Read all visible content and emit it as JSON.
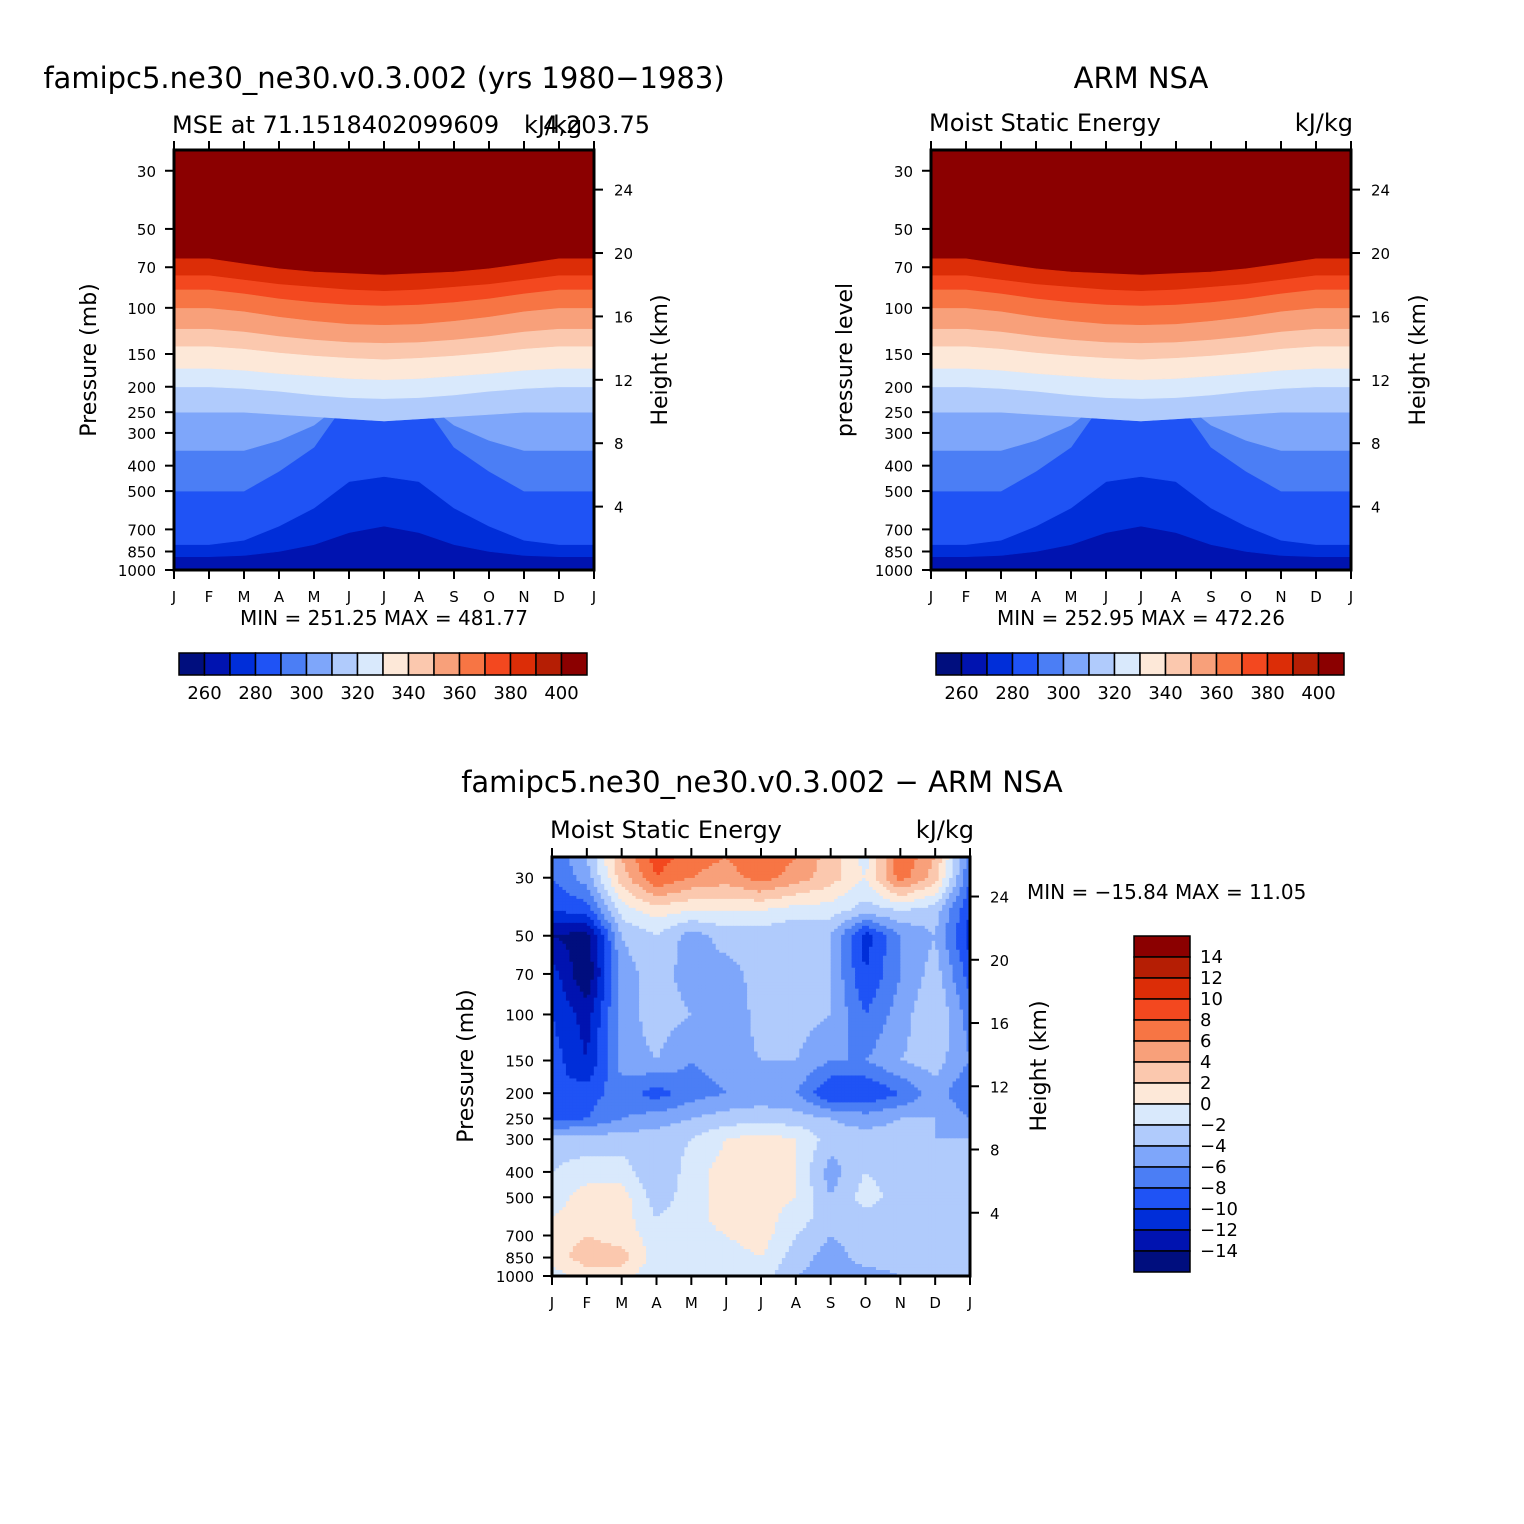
{
  "chart_data": [
    {
      "type": "heatmap",
      "id": "model",
      "title": "famipc5.ne30_ne30.v0.3.002 (yrs 1980−1983)",
      "subtitle_left": "MSE at 71.1518402099609",
      "subtitle_right": "kJ/kg",
      "subtitle_extra": "4,203.75",
      "ylabel": "Pressure (mb)",
      "ylabel_right": "Height (km)",
      "x_ticks": [
        "J",
        "F",
        "M",
        "A",
        "M",
        "J",
        "J",
        "A",
        "S",
        "O",
        "N",
        "D",
        "J"
      ],
      "p_ticks": [
        30,
        50,
        70,
        100,
        150,
        200,
        250,
        300,
        400,
        500,
        700,
        850,
        1000
      ],
      "height_ticks": [
        24,
        20,
        16,
        12,
        8,
        4
      ],
      "minmax": "MIN = 251.25 MAX = 481.77",
      "levels": [
        260,
        270,
        280,
        290,
        300,
        310,
        320,
        330,
        340,
        350,
        360,
        370,
        380,
        390,
        400
      ],
      "colorbar_labels": [
        "260",
        "280",
        "300",
        "320",
        "340",
        "360",
        "380",
        "400"
      ],
      "contour_pressures": [
        1000,
        900,
        800,
        500,
        350,
        250,
        200,
        170,
        140,
        120,
        100,
        85,
        75,
        65
      ],
      "contour_offsets": [
        [
          0,
          0,
          0,
          0,
          0,
          0,
          0,
          0,
          0,
          0,
          0,
          0,
          0
        ],
        [
          -10,
          -10,
          -20,
          -50,
          -100,
          -180,
          -220,
          -180,
          -100,
          -50,
          -20,
          -10,
          -10
        ],
        [
          0,
          0,
          -30,
          -120,
          -220,
          -340,
          -360,
          -340,
          -220,
          -120,
          -30,
          0,
          0
        ],
        [
          0,
          0,
          0,
          -80,
          -160,
          -280,
          -320,
          -280,
          -160,
          -80,
          0,
          0,
          0
        ],
        [
          0,
          0,
          0,
          -30,
          -70,
          -130,
          -150,
          -130,
          -70,
          -30,
          0,
          0,
          0
        ],
        [
          0,
          0,
          0,
          5,
          10,
          15,
          20,
          15,
          10,
          5,
          0,
          0,
          0
        ],
        [
          0,
          0,
          3,
          8,
          15,
          20,
          22,
          20,
          15,
          8,
          3,
          0,
          0
        ],
        [
          0,
          0,
          3,
          8,
          12,
          16,
          18,
          16,
          12,
          8,
          3,
          0,
          0
        ],
        [
          0,
          0,
          3,
          8,
          12,
          15,
          17,
          15,
          12,
          8,
          3,
          0,
          0
        ],
        [
          0,
          0,
          3,
          8,
          12,
          15,
          16,
          15,
          12,
          8,
          3,
          0,
          0
        ],
        [
          0,
          0,
          3,
          8,
          12,
          15,
          16,
          15,
          12,
          8,
          3,
          0,
          0
        ],
        [
          0,
          0,
          3,
          7,
          10,
          12,
          13,
          12,
          10,
          7,
          3,
          0,
          0
        ],
        [
          0,
          0,
          3,
          6,
          8,
          10,
          11,
          10,
          8,
          6,
          3,
          0,
          0
        ],
        [
          0,
          0,
          3,
          6,
          8,
          9,
          10,
          9,
          8,
          6,
          3,
          0,
          0
        ]
      ]
    },
    {
      "type": "heatmap",
      "id": "obs",
      "title": "ARM NSA",
      "subtitle_left": "Moist Static Energy",
      "subtitle_right": "kJ/kg",
      "ylabel": "pressure level",
      "ylabel_right": "Height (km)",
      "x_ticks": [
        "J",
        "F",
        "M",
        "A",
        "M",
        "J",
        "J",
        "A",
        "S",
        "O",
        "N",
        "D",
        "J"
      ],
      "p_ticks": [
        30,
        50,
        70,
        100,
        150,
        200,
        250,
        300,
        400,
        500,
        700,
        850,
        1000
      ],
      "height_ticks": [
        24,
        20,
        16,
        12,
        8,
        4
      ],
      "minmax": "MIN = 252.95 MAX = 472.26",
      "levels": [
        260,
        270,
        280,
        290,
        300,
        310,
        320,
        330,
        340,
        350,
        360,
        370,
        380,
        390,
        400
      ],
      "colorbar_labels": [
        "260",
        "280",
        "300",
        "320",
        "340",
        "360",
        "380",
        "400"
      ],
      "contour_pressures": [
        1000,
        900,
        800,
        500,
        350,
        250,
        200,
        170,
        140,
        120,
        100,
        85,
        75,
        65
      ],
      "contour_offsets": [
        [
          0,
          0,
          0,
          0,
          0,
          0,
          0,
          0,
          0,
          0,
          0,
          0,
          0
        ],
        [
          -10,
          -10,
          -20,
          -50,
          -100,
          -180,
          -220,
          -180,
          -100,
          -50,
          -20,
          -10,
          -10
        ],
        [
          0,
          0,
          -30,
          -120,
          -220,
          -340,
          -360,
          -340,
          -220,
          -120,
          -30,
          0,
          0
        ],
        [
          0,
          0,
          0,
          -80,
          -160,
          -280,
          -320,
          -280,
          -160,
          -80,
          0,
          0,
          0
        ],
        [
          0,
          0,
          0,
          -30,
          -70,
          -130,
          -150,
          -130,
          -70,
          -30,
          0,
          0,
          0
        ],
        [
          0,
          0,
          0,
          5,
          10,
          15,
          20,
          15,
          10,
          5,
          0,
          0,
          0
        ],
        [
          0,
          0,
          3,
          8,
          15,
          20,
          22,
          20,
          15,
          8,
          3,
          0,
          0
        ],
        [
          0,
          0,
          3,
          8,
          12,
          16,
          18,
          16,
          12,
          8,
          3,
          0,
          0
        ],
        [
          0,
          0,
          3,
          8,
          12,
          15,
          17,
          15,
          12,
          8,
          3,
          0,
          0
        ],
        [
          0,
          0,
          3,
          8,
          12,
          15,
          16,
          15,
          12,
          8,
          3,
          0,
          0
        ],
        [
          0,
          0,
          3,
          8,
          12,
          15,
          16,
          15,
          12,
          8,
          3,
          0,
          0
        ],
        [
          0,
          0,
          3,
          7,
          10,
          12,
          13,
          12,
          10,
          7,
          3,
          0,
          0
        ],
        [
          0,
          0,
          3,
          6,
          8,
          10,
          11,
          10,
          8,
          6,
          3,
          0,
          0
        ],
        [
          0,
          0,
          3,
          6,
          8,
          9,
          10,
          9,
          8,
          6,
          3,
          0,
          0
        ]
      ]
    },
    {
      "type": "heatmap",
      "id": "diff",
      "title": "famipc5.ne30_ne30.v0.3.002 − ARM NSA",
      "subtitle_left": "Moist Static Energy",
      "subtitle_right": "kJ/kg",
      "ylabel": "Pressure (mb)",
      "ylabel_right": "Height (km)",
      "x_ticks": [
        "J",
        "F",
        "M",
        "A",
        "M",
        "J",
        "J",
        "A",
        "S",
        "O",
        "N",
        "D",
        "J"
      ],
      "p_ticks": [
        30,
        50,
        70,
        100,
        150,
        200,
        250,
        300,
        400,
        500,
        700,
        850,
        1000
      ],
      "height_ticks": [
        24,
        20,
        16,
        12,
        8,
        4
      ],
      "minmax": "MIN = −15.84 MAX =   11.05",
      "levels": [
        -14,
        -12,
        -10,
        -8,
        -6,
        -4,
        -2,
        0,
        2,
        4,
        6,
        8,
        10,
        12,
        14
      ],
      "colorbar_labels": [
        "14",
        "12",
        "10",
        "8",
        "6",
        "4",
        "2",
        "0",
        "−2",
        "−4",
        "−6",
        "−8",
        "−10",
        "−12",
        "−14"
      ],
      "grid_pressures": [
        25,
        30,
        40,
        50,
        70,
        100,
        150,
        200,
        250,
        300,
        400,
        500,
        600,
        700,
        850,
        1000
      ],
      "grid_values": [
        [
          -8,
          -4,
          4,
          9,
          7,
          6,
          8,
          6,
          3,
          -1,
          8,
          4,
          -7
        ],
        [
          -8,
          -5,
          3,
          8,
          6,
          5,
          7,
          5,
          3,
          0,
          7,
          3,
          -8
        ],
        [
          -10,
          -9,
          -1,
          1,
          0,
          0,
          0,
          -1,
          -1,
          -3,
          -2,
          -3,
          -10
        ],
        [
          -14,
          -15,
          -4,
          -2,
          -5,
          -3,
          -3,
          -4,
          -4,
          -11,
          -6,
          -4,
          -11
        ],
        [
          -11,
          -16,
          -5,
          -3,
          -5,
          -5,
          -3,
          -4,
          -4,
          -10,
          -6,
          -3,
          -9
        ],
        [
          -10,
          -13,
          -5,
          -3,
          -4,
          -6,
          -3,
          -3,
          -4,
          -8,
          -5,
          -2,
          -7
        ],
        [
          -9,
          -12,
          -5,
          -4,
          -6,
          -5,
          -4,
          -4,
          -6,
          -6,
          -4,
          -3,
          -6
        ],
        [
          -10,
          -9,
          -7,
          -9,
          -7,
          -6,
          -5,
          -6,
          -10,
          -10,
          -8,
          -5,
          -8
        ],
        [
          -9,
          -8,
          -6,
          -5,
          -4,
          -3,
          -3,
          -3,
          -4,
          -5,
          -4,
          -4,
          -6
        ],
        [
          -3,
          -3,
          -3,
          -3,
          -2,
          0,
          1,
          0,
          -3,
          -3,
          -3,
          -4,
          -4
        ],
        [
          -2,
          -1,
          -1,
          -4,
          -1,
          1,
          1,
          0,
          -5,
          -2,
          -3,
          -3,
          -3
        ],
        [
          -1,
          1,
          1,
          -3,
          -1,
          1,
          1,
          0,
          -4,
          -1,
          -3,
          -4,
          -3
        ],
        [
          0,
          1,
          1,
          -2,
          -1,
          1,
          1,
          -1,
          -3,
          -3,
          -3,
          -3,
          -3
        ],
        [
          1,
          2,
          1,
          -1,
          -1,
          0,
          1,
          -2,
          -4,
          -3,
          -3,
          -3,
          -2
        ],
        [
          1,
          3,
          3,
          -1,
          0,
          -1,
          0,
          -3,
          -5,
          -3,
          -3,
          -3,
          -2
        ],
        [
          -1,
          1,
          1,
          -2,
          0,
          0,
          -1,
          -4,
          -5,
          -5,
          -4,
          -4,
          -3
        ]
      ]
    }
  ]
}
